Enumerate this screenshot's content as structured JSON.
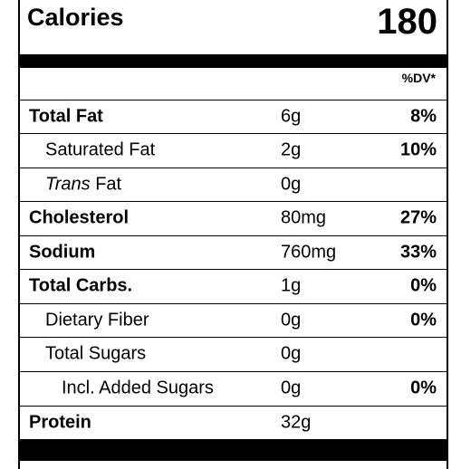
{
  "calories": {
    "label": "Calories",
    "value": "180"
  },
  "dv_header": "%DV*",
  "rows": [
    {
      "name": "Total Fat",
      "amount": "6g",
      "dv": "8%"
    },
    {
      "name": "Saturated Fat",
      "amount": "2g",
      "dv": "10%"
    },
    {
      "name_italic": "Trans",
      "name": "Fat",
      "amount": "0g"
    },
    {
      "name": "Cholesterol",
      "amount": "80mg",
      "dv": "27%"
    },
    {
      "name": "Sodium",
      "amount": "760mg",
      "dv": "33%"
    },
    {
      "name": "Total Carbs.",
      "amount": "1g",
      "dv": "0%"
    },
    {
      "name": "Dietary Fiber",
      "amount": "0g",
      "dv": "0%"
    },
    {
      "name": "Total Sugars",
      "amount": "0g"
    },
    {
      "name": "Incl. Added Sugars",
      "amount": "0g",
      "dv": "0%"
    },
    {
      "name": "Protein",
      "amount": "32g"
    }
  ]
}
